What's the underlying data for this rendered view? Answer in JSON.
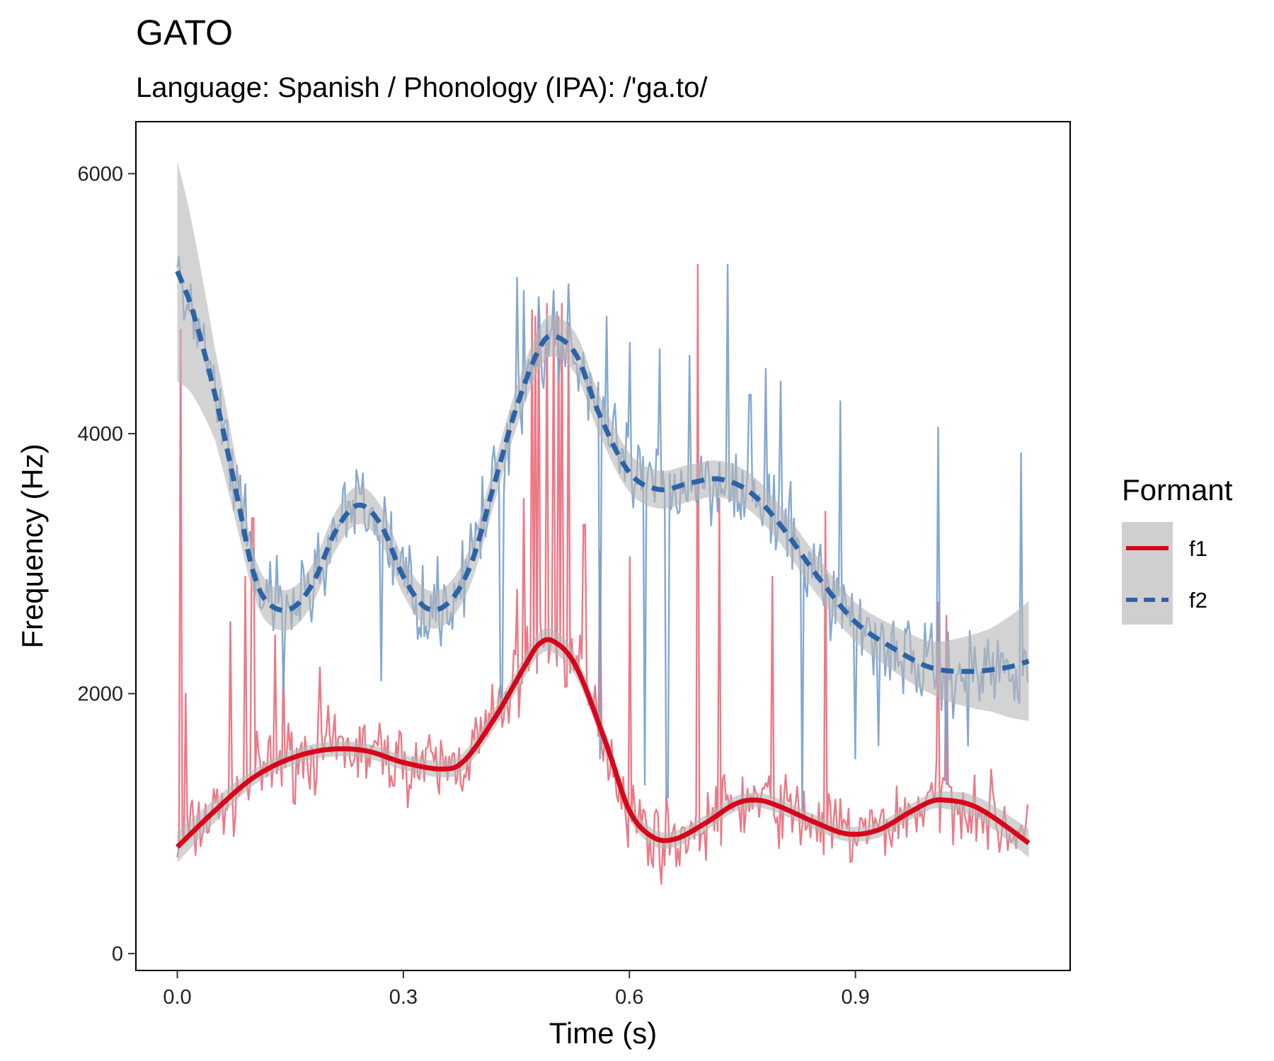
{
  "chart_data": {
    "type": "line",
    "title": "GATO",
    "subtitle": "Language: Spanish / Phonology (IPA): /'ga.to/",
    "xlabel": "Time (s)",
    "ylabel": "Frequency (Hz)",
    "xlim": [
      -0.055,
      1.185
    ],
    "ylim": [
      -130,
      6400
    ],
    "xticks": [
      0.0,
      0.3,
      0.6,
      0.9
    ],
    "xtick_labels": [
      "0.0",
      "0.3",
      "0.6",
      "0.9"
    ],
    "yticks": [
      0,
      2000,
      4000,
      6000
    ],
    "ytick_labels": [
      "0",
      "2000",
      "4000",
      "6000"
    ],
    "grid": false,
    "legend": {
      "title": "Formant",
      "position": "right"
    },
    "colors": {
      "f1": "#d7061a",
      "f1_raw": "#ec6e7c",
      "f2": "#2c63a6",
      "f2_raw": "#7aa1cd",
      "band": "#b5b5b5"
    },
    "series": [
      {
        "name": "f1",
        "style": "solid",
        "smooth": [
          [
            0.0,
            820
          ],
          [
            0.05,
            1100
          ],
          [
            0.1,
            1350
          ],
          [
            0.15,
            1500
          ],
          [
            0.2,
            1570
          ],
          [
            0.25,
            1560
          ],
          [
            0.3,
            1470
          ],
          [
            0.35,
            1420
          ],
          [
            0.38,
            1480
          ],
          [
            0.42,
            1800
          ],
          [
            0.46,
            2200
          ],
          [
            0.48,
            2380
          ],
          [
            0.5,
            2400
          ],
          [
            0.53,
            2200
          ],
          [
            0.57,
            1600
          ],
          [
            0.6,
            1100
          ],
          [
            0.63,
            900
          ],
          [
            0.66,
            880
          ],
          [
            0.7,
            1000
          ],
          [
            0.74,
            1150
          ],
          [
            0.77,
            1180
          ],
          [
            0.8,
            1130
          ],
          [
            0.85,
            1000
          ],
          [
            0.89,
            920
          ],
          [
            0.93,
            950
          ],
          [
            0.97,
            1080
          ],
          [
            1.0,
            1170
          ],
          [
            1.02,
            1180
          ],
          [
            1.05,
            1150
          ],
          [
            1.08,
            1060
          ],
          [
            1.13,
            850
          ]
        ],
        "band_halfwidth": [
          [
            0.0,
            120
          ],
          [
            0.1,
            60
          ],
          [
            0.3,
            55
          ],
          [
            0.5,
            90
          ],
          [
            0.6,
            65
          ],
          [
            0.8,
            55
          ],
          [
            1.0,
            60
          ],
          [
            1.13,
            110
          ]
        ]
      },
      {
        "name": "f2",
        "style": "dashed",
        "smooth": [
          [
            0.0,
            5250
          ],
          [
            0.02,
            4950
          ],
          [
            0.05,
            4300
          ],
          [
            0.08,
            3500
          ],
          [
            0.1,
            2950
          ],
          [
            0.12,
            2700
          ],
          [
            0.15,
            2650
          ],
          [
            0.18,
            2850
          ],
          [
            0.21,
            3250
          ],
          [
            0.24,
            3450
          ],
          [
            0.27,
            3300
          ],
          [
            0.3,
            2900
          ],
          [
            0.33,
            2660
          ],
          [
            0.36,
            2700
          ],
          [
            0.39,
            3000
          ],
          [
            0.42,
            3600
          ],
          [
            0.45,
            4200
          ],
          [
            0.48,
            4650
          ],
          [
            0.5,
            4750
          ],
          [
            0.53,
            4600
          ],
          [
            0.56,
            4150
          ],
          [
            0.6,
            3700
          ],
          [
            0.64,
            3570
          ],
          [
            0.68,
            3620
          ],
          [
            0.72,
            3650
          ],
          [
            0.76,
            3550
          ],
          [
            0.8,
            3300
          ],
          [
            0.85,
            2900
          ],
          [
            0.9,
            2550
          ],
          [
            0.95,
            2350
          ],
          [
            1.0,
            2200
          ],
          [
            1.05,
            2170
          ],
          [
            1.1,
            2200
          ],
          [
            1.13,
            2250
          ]
        ],
        "band_halfwidth": [
          [
            0.0,
            850
          ],
          [
            0.05,
            350
          ],
          [
            0.1,
            160
          ],
          [
            0.3,
            140
          ],
          [
            0.5,
            160
          ],
          [
            0.7,
            140
          ],
          [
            0.9,
            150
          ],
          [
            1.0,
            200
          ],
          [
            1.08,
            320
          ],
          [
            1.13,
            460
          ]
        ]
      }
    ],
    "raw_traces": [
      {
        "name": "f1 raw",
        "baseline": "f1",
        "noise_hz": 240,
        "spikes": [
          [
            0.005,
            4800
          ],
          [
            0.012,
            2000
          ],
          [
            0.07,
            2550
          ],
          [
            0.09,
            2900
          ],
          [
            0.1,
            3350
          ],
          [
            0.13,
            2450
          ],
          [
            0.14,
            2300
          ],
          [
            0.19,
            2200
          ],
          [
            0.45,
            2800
          ],
          [
            0.46,
            3500
          ],
          [
            0.47,
            4950
          ],
          [
            0.475,
            4900
          ],
          [
            0.48,
            4980
          ],
          [
            0.49,
            5000
          ],
          [
            0.5,
            4950
          ],
          [
            0.505,
            4900
          ],
          [
            0.51,
            5000
          ],
          [
            0.52,
            4850
          ],
          [
            0.54,
            3300
          ],
          [
            0.56,
            3100
          ],
          [
            0.6,
            3050
          ],
          [
            0.69,
            5300
          ],
          [
            0.72,
            3500
          ],
          [
            0.79,
            2900
          ],
          [
            0.86,
            3400
          ],
          [
            1.01,
            2700
          ],
          [
            1.02,
            2600
          ]
        ]
      },
      {
        "name": "f2 raw",
        "baseline": "f2",
        "noise_hz": 280,
        "spikes": [
          [
            0.45,
            5200
          ],
          [
            0.46,
            5100
          ],
          [
            0.48,
            5050
          ],
          [
            0.5,
            5100
          ],
          [
            0.52,
            5150
          ],
          [
            0.57,
            4900
          ],
          [
            0.6,
            4700
          ],
          [
            0.64,
            4650
          ],
          [
            0.68,
            4600
          ],
          [
            0.73,
            5300
          ],
          [
            0.76,
            4300
          ],
          [
            0.78,
            4500
          ],
          [
            0.8,
            4400
          ],
          [
            0.83,
            4100
          ],
          [
            0.88,
            4250
          ],
          [
            0.93,
            3000
          ],
          [
            1.01,
            4050
          ],
          [
            1.12,
            3850
          ]
        ],
        "dips": [
          [
            0.14,
            2000
          ],
          [
            0.27,
            2100
          ],
          [
            0.43,
            1900
          ],
          [
            0.56,
            1500
          ],
          [
            0.62,
            1300
          ],
          [
            0.65,
            1200
          ],
          [
            0.83,
            1100
          ],
          [
            0.9,
            1500
          ],
          [
            0.93,
            1600
          ],
          [
            1.02,
            1300
          ],
          [
            1.05,
            1600
          ]
        ]
      }
    ]
  }
}
